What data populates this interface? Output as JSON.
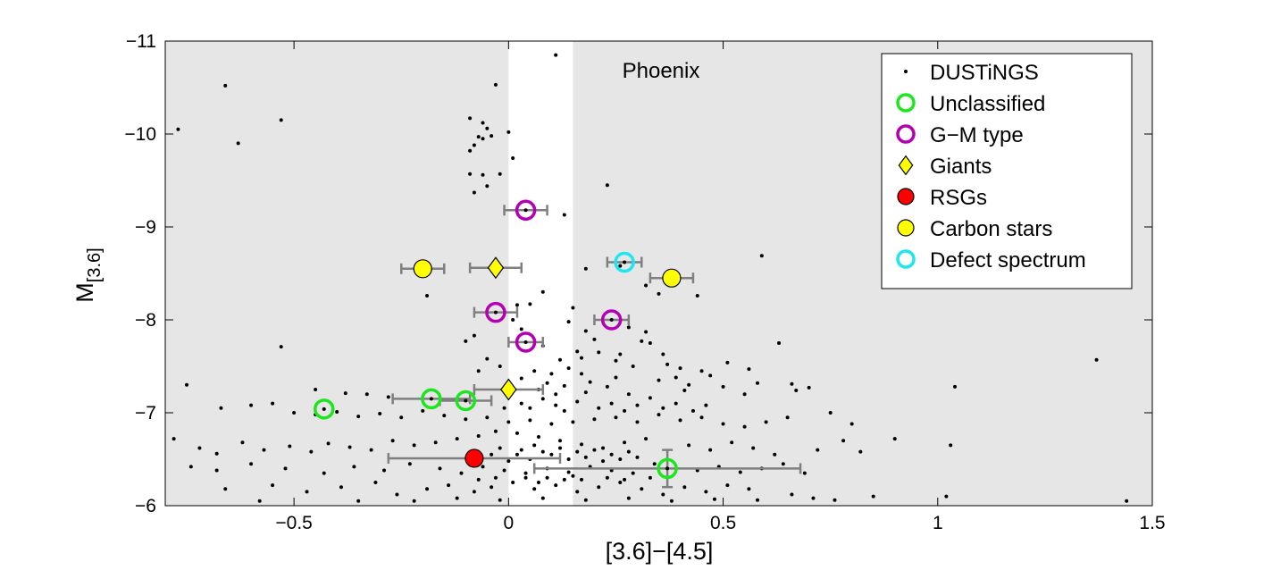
{
  "chart_data": {
    "type": "scatter",
    "annotation": "Phoenix",
    "xlabel": "[3.6]−[4.5]",
    "ylabel_main": "M",
    "ylabel_sub": "[3.6]",
    "xlim": [
      -0.8,
      1.5
    ],
    "ylim": [
      -11,
      -6
    ],
    "y_reversed": true,
    "x_ticks": [
      -0.5,
      0,
      0.5,
      1,
      1.5
    ],
    "x_tick_labels": [
      "−0.5",
      "0",
      "0.5",
      "1",
      "1.5"
    ],
    "y_ticks": [
      -11,
      -10,
      -9,
      -8,
      -7,
      -6
    ],
    "y_tick_labels": [
      "−11",
      "−10",
      "−9",
      "−8",
      "−7",
      "−6"
    ],
    "shaded_exclusion": "outside",
    "unshaded_x_range": [
      0,
      0.15
    ],
    "grid": false,
    "legend_position": "top-right",
    "legend": [
      {
        "label": "DUSTiNGS",
        "marker": "dot",
        "color": "#000000"
      },
      {
        "label": "Unclassified",
        "marker": "ring",
        "color": "#1ee61e"
      },
      {
        "label": "G−M type",
        "marker": "ring",
        "color": "#b400b4"
      },
      {
        "label": "Giants",
        "marker": "diamond",
        "color": "#ffff00"
      },
      {
        "label": "RSGs",
        "marker": "filled-circle",
        "color": "#ff0000"
      },
      {
        "label": "Carbon stars",
        "marker": "filled-circle",
        "color": "#ffff00"
      },
      {
        "label": "Defect spectrum",
        "marker": "ring",
        "color": "#1ee6f0"
      }
    ],
    "errorbar_color": "#7f7f7f",
    "dustings_points": [
      [
        0.11,
        -10.85
      ],
      [
        -0.66,
        -10.52
      ],
      [
        -0.77,
        -10.05
      ],
      [
        -0.53,
        -10.15
      ],
      [
        -0.63,
        -9.9
      ],
      [
        -0.03,
        -10.53
      ],
      [
        -0.09,
        -10.17
      ],
      [
        -0.06,
        -10.12
      ],
      [
        -0.05,
        -10.06
      ],
      [
        -0.04,
        -9.98
      ],
      [
        -0.07,
        -9.97
      ],
      [
        -0.08,
        -9.88
      ],
      [
        0.0,
        -10.02
      ],
      [
        -0.09,
        -9.82
      ],
      [
        -0.06,
        -9.56
      ],
      [
        -0.05,
        -9.44
      ],
      [
        -0.02,
        -9.57
      ],
      [
        -0.09,
        -9.57
      ],
      [
        -0.08,
        -9.37
      ],
      [
        0.01,
        -9.74
      ],
      [
        -0.06,
        -9.95
      ],
      [
        0.23,
        -9.45
      ],
      [
        0.13,
        -9.13
      ],
      [
        0.59,
        -8.69
      ],
      [
        0.18,
        -8.55
      ],
      [
        0.44,
        -8.26
      ],
      [
        0.26,
        -8.58
      ],
      [
        0.29,
        -8.62
      ],
      [
        0.32,
        -8.37
      ],
      [
        0.35,
        -8.28
      ],
      [
        -0.19,
        -8.26
      ],
      [
        0.08,
        -8.3
      ],
      [
        0.05,
        -8.17
      ],
      [
        0.15,
        -8.13
      ],
      [
        0.02,
        -8.16
      ],
      [
        0.01,
        -8.0
      ],
      [
        0.14,
        -7.98
      ],
      [
        0.03,
        -7.9
      ],
      [
        0.18,
        -7.88
      ],
      [
        0.28,
        -7.92
      ],
      [
        0.32,
        -7.87
      ],
      [
        0.2,
        -7.79
      ],
      [
        0.33,
        -7.75
      ],
      [
        0.36,
        -7.63
      ],
      [
        0.26,
        -7.63
      ],
      [
        0.31,
        -7.77
      ],
      [
        0.08,
        -7.72
      ],
      [
        -0.08,
        -7.83
      ],
      [
        -0.1,
        -7.77
      ],
      [
        0.12,
        -7.57
      ],
      [
        0.16,
        -7.66
      ],
      [
        0.21,
        -7.65
      ],
      [
        0.17,
        -7.59
      ],
      [
        0.25,
        -7.56
      ],
      [
        0.29,
        -7.5
      ],
      [
        0.37,
        -7.52
      ],
      [
        0.45,
        -7.45
      ],
      [
        0.4,
        -7.48
      ],
      [
        0.47,
        -7.4
      ],
      [
        0.51,
        -7.54
      ],
      [
        0.56,
        -7.47
      ],
      [
        0.63,
        -7.75
      ],
      [
        0.58,
        -7.32
      ],
      [
        0.66,
        -7.31
      ],
      [
        0.7,
        -7.27
      ],
      [
        0.67,
        -7.24
      ],
      [
        0.5,
        -7.28
      ],
      [
        0.55,
        -7.2
      ],
      [
        0.41,
        -7.24
      ],
      [
        0.33,
        -7.16
      ],
      [
        0.28,
        -7.2
      ],
      [
        0.23,
        -7.28
      ],
      [
        0.19,
        -7.33
      ],
      [
        0.13,
        -7.29
      ],
      [
        0.1,
        -7.42
      ],
      [
        0.06,
        -7.45
      ],
      [
        0.03,
        -7.37
      ],
      [
        -0.05,
        -7.58
      ],
      [
        -0.02,
        -7.5
      ],
      [
        -0.07,
        -7.45
      ],
      [
        -0.75,
        -7.3
      ],
      [
        -0.45,
        -7.25
      ],
      [
        -0.38,
        -7.21
      ],
      [
        -0.33,
        -7.2
      ],
      [
        -0.28,
        -7.17
      ],
      [
        -0.53,
        -7.71
      ],
      [
        -0.67,
        -7.05
      ],
      [
        -0.6,
        -7.08
      ],
      [
        -0.55,
        -7.1
      ],
      [
        -0.5,
        -7.0
      ],
      [
        -0.45,
        -6.98
      ],
      [
        -0.4,
        -7.01
      ],
      [
        -0.35,
        -6.96
      ],
      [
        -0.3,
        -6.99
      ],
      [
        -0.25,
        -6.95
      ],
      [
        -0.2,
        -7.02
      ],
      [
        -0.15,
        -6.97
      ],
      [
        -0.1,
        -6.93
      ],
      [
        -0.05,
        -6.95
      ],
      [
        0.0,
        -6.9
      ],
      [
        0.05,
        -6.92
      ],
      [
        0.1,
        -6.88
      ],
      [
        0.15,
        -6.9
      ],
      [
        0.2,
        -6.93
      ],
      [
        0.25,
        -6.95
      ],
      [
        0.3,
        -6.9
      ],
      [
        0.35,
        -6.98
      ],
      [
        0.4,
        -6.92
      ],
      [
        0.45,
        -6.95
      ],
      [
        0.5,
        -6.88
      ],
      [
        0.55,
        -6.85
      ],
      [
        0.6,
        -6.9
      ],
      [
        0.65,
        -6.95
      ],
      [
        0.75,
        -7.0
      ],
      [
        0.8,
        -6.88
      ],
      [
        0.78,
        -6.7
      ],
      [
        0.9,
        -6.72
      ],
      [
        1.04,
        -7.28
      ],
      [
        1.37,
        -7.57
      ],
      [
        1.03,
        -6.65
      ],
      [
        -0.78,
        -6.72
      ],
      [
        -0.72,
        -6.62
      ],
      [
        -0.68,
        -6.56
      ],
      [
        -0.62,
        -6.68
      ],
      [
        -0.57,
        -6.6
      ],
      [
        -0.51,
        -6.64
      ],
      [
        -0.46,
        -6.58
      ],
      [
        -0.42,
        -6.67
      ],
      [
        -0.37,
        -6.63
      ],
      [
        -0.32,
        -6.6
      ],
      [
        -0.27,
        -6.7
      ],
      [
        -0.22,
        -6.65
      ],
      [
        -0.17,
        -6.68
      ],
      [
        -0.12,
        -6.72
      ],
      [
        -0.07,
        -6.75
      ],
      [
        -0.03,
        -6.8
      ],
      [
        0.02,
        -6.78
      ],
      [
        0.07,
        -6.74
      ],
      [
        0.12,
        -6.7
      ],
      [
        0.17,
        -6.66
      ],
      [
        0.22,
        -6.62
      ],
      [
        0.27,
        -6.68
      ],
      [
        0.32,
        -6.72
      ],
      [
        0.42,
        -6.65
      ],
      [
        0.47,
        -6.6
      ],
      [
        0.52,
        -6.68
      ],
      [
        0.57,
        -6.62
      ],
      [
        0.62,
        -6.55
      ],
      [
        0.72,
        -6.6
      ],
      [
        0.82,
        -6.58
      ],
      [
        -0.74,
        -6.42
      ],
      [
        -0.68,
        -6.38
      ],
      [
        -0.6,
        -6.45
      ],
      [
        -0.52,
        -6.4
      ],
      [
        -0.43,
        -6.35
      ],
      [
        -0.36,
        -6.42
      ],
      [
        -0.29,
        -6.38
      ],
      [
        -0.23,
        -6.45
      ],
      [
        -0.16,
        -6.4
      ],
      [
        -0.11,
        -6.35
      ],
      [
        -0.06,
        -6.42
      ],
      [
        -0.01,
        -6.38
      ],
      [
        0.04,
        -6.35
      ],
      [
        0.09,
        -6.4
      ],
      [
        0.14,
        -6.36
      ],
      [
        0.19,
        -6.42
      ],
      [
        0.24,
        -6.38
      ],
      [
        0.29,
        -6.35
      ],
      [
        0.34,
        -6.45
      ],
      [
        0.44,
        -6.38
      ],
      [
        0.49,
        -6.42
      ],
      [
        0.54,
        -6.36
      ],
      [
        0.59,
        -6.4
      ],
      [
        0.64,
        -6.45
      ],
      [
        0.69,
        -6.35
      ],
      [
        -0.66,
        -6.18
      ],
      [
        -0.55,
        -6.22
      ],
      [
        -0.47,
        -6.15
      ],
      [
        -0.39,
        -6.2
      ],
      [
        -0.31,
        -6.25
      ],
      [
        -0.26,
        -6.12
      ],
      [
        -0.19,
        -6.18
      ],
      [
        -0.14,
        -6.22
      ],
      [
        -0.08,
        -6.15
      ],
      [
        -0.04,
        -6.2
      ],
      [
        0.01,
        -6.25
      ],
      [
        0.06,
        -6.18
      ],
      [
        0.11,
        -6.22
      ],
      [
        0.16,
        -6.15
      ],
      [
        0.21,
        -6.2
      ],
      [
        0.26,
        -6.25
      ],
      [
        0.31,
        -6.18
      ],
      [
        0.36,
        -6.12
      ],
      [
        0.41,
        -6.2
      ],
      [
        0.46,
        -6.15
      ],
      [
        0.51,
        -6.22
      ],
      [
        0.56,
        -6.18
      ],
      [
        0.66,
        -6.12
      ],
      [
        0.71,
        -6.08
      ],
      [
        0.85,
        -6.1
      ],
      [
        1.02,
        -6.1
      ],
      [
        1.44,
        -6.05
      ],
      [
        -0.58,
        -6.05
      ],
      [
        -0.35,
        -6.05
      ],
      [
        -0.22,
        -6.05
      ],
      [
        -0.12,
        -6.08
      ],
      [
        -0.02,
        -6.06
      ],
      [
        0.08,
        -6.08
      ],
      [
        0.18,
        -6.06
      ],
      [
        0.28,
        -6.08
      ],
      [
        0.38,
        -6.05
      ],
      [
        0.48,
        -6.07
      ],
      [
        0.58,
        -6.06
      ],
      [
        0.76,
        -6.06
      ],
      [
        0.02,
        -6.55
      ],
      [
        0.03,
        -6.6
      ],
      [
        0.05,
        -6.5
      ],
      [
        0.06,
        -6.65
      ],
      [
        0.08,
        -6.58
      ],
      [
        -0.02,
        -6.62
      ],
      [
        -0.04,
        -6.55
      ],
      [
        0.0,
        -6.48
      ],
      [
        0.1,
        -6.55
      ],
      [
        0.12,
        -6.62
      ],
      [
        0.14,
        -6.5
      ],
      [
        0.16,
        -6.58
      ],
      [
        0.18,
        -6.52
      ],
      [
        0.2,
        -6.6
      ],
      [
        0.22,
        -6.48
      ],
      [
        0.24,
        -6.55
      ],
      [
        0.26,
        -6.5
      ],
      [
        0.28,
        -6.58
      ],
      [
        0.3,
        -6.52
      ],
      [
        0.04,
        -6.3
      ],
      [
        0.07,
        -6.25
      ],
      [
        0.09,
        -6.3
      ],
      [
        0.13,
        -6.28
      ],
      [
        0.15,
        -6.32
      ],
      [
        0.17,
        -6.28
      ],
      [
        0.23,
        -6.3
      ],
      [
        0.27,
        -6.28
      ],
      [
        0.33,
        -6.3
      ],
      [
        -0.03,
        -6.3
      ],
      [
        -0.07,
        -6.28
      ],
      [
        0.03,
        -7.1
      ],
      [
        0.05,
        -7.05
      ],
      [
        0.08,
        -7.15
      ],
      [
        0.11,
        -7.08
      ],
      [
        0.13,
        -7.02
      ],
      [
        0.16,
        -7.12
      ],
      [
        0.21,
        -7.05
      ],
      [
        0.24,
        -7.1
      ],
      [
        0.27,
        -7.02
      ],
      [
        0.3,
        -7.08
      ],
      [
        0.36,
        -7.05
      ],
      [
        0.39,
        -7.1
      ],
      [
        0.43,
        -7.02
      ],
      [
        0.46,
        -7.08
      ],
      [
        -0.01,
        -7.05
      ],
      [
        0.07,
        -7.25
      ],
      [
        0.09,
        -7.32
      ],
      [
        0.11,
        -7.2
      ],
      [
        0.18,
        -7.22
      ],
      [
        0.25,
        -7.38
      ],
      [
        0.35,
        -7.35
      ],
      [
        0.39,
        -7.38
      ],
      [
        0.42,
        -7.3
      ],
      [
        0.14,
        -7.48
      ],
      [
        0.17,
        -7.42
      ]
    ],
    "unclassified": [
      {
        "x": -0.43,
        "y": -7.04
      },
      {
        "x": -0.18,
        "y": -7.15,
        "xerr": 0.09
      },
      {
        "x": -0.1,
        "y": -7.13,
        "xerr": 0.06
      },
      {
        "x": 0.37,
        "y": -6.4,
        "xerr": 0.31,
        "yerr": 0.2
      }
    ],
    "gm_type": [
      {
        "x": 0.04,
        "y": -9.18,
        "xerr": 0.05
      },
      {
        "x": -0.03,
        "y": -8.08,
        "xerr": 0.05
      },
      {
        "x": 0.04,
        "y": -7.76,
        "xerr": 0.04
      },
      {
        "x": 0.24,
        "y": -8.0,
        "xerr": 0.04
      }
    ],
    "giants": [
      {
        "x": -0.03,
        "y": -8.56,
        "xerr": 0.06
      },
      {
        "x": 0.0,
        "y": -7.25,
        "xerr": 0.08
      }
    ],
    "rsgs": [
      {
        "x": -0.08,
        "y": -6.51,
        "xerr": 0.2
      }
    ],
    "carbon_stars": [
      {
        "x": -0.2,
        "y": -8.55,
        "xerr": 0.05
      },
      {
        "x": 0.38,
        "y": -8.45,
        "xerr": 0.05
      }
    ],
    "defect_spectrum": [
      {
        "x": 0.27,
        "y": -8.62,
        "xerr": 0.04
      }
    ]
  }
}
